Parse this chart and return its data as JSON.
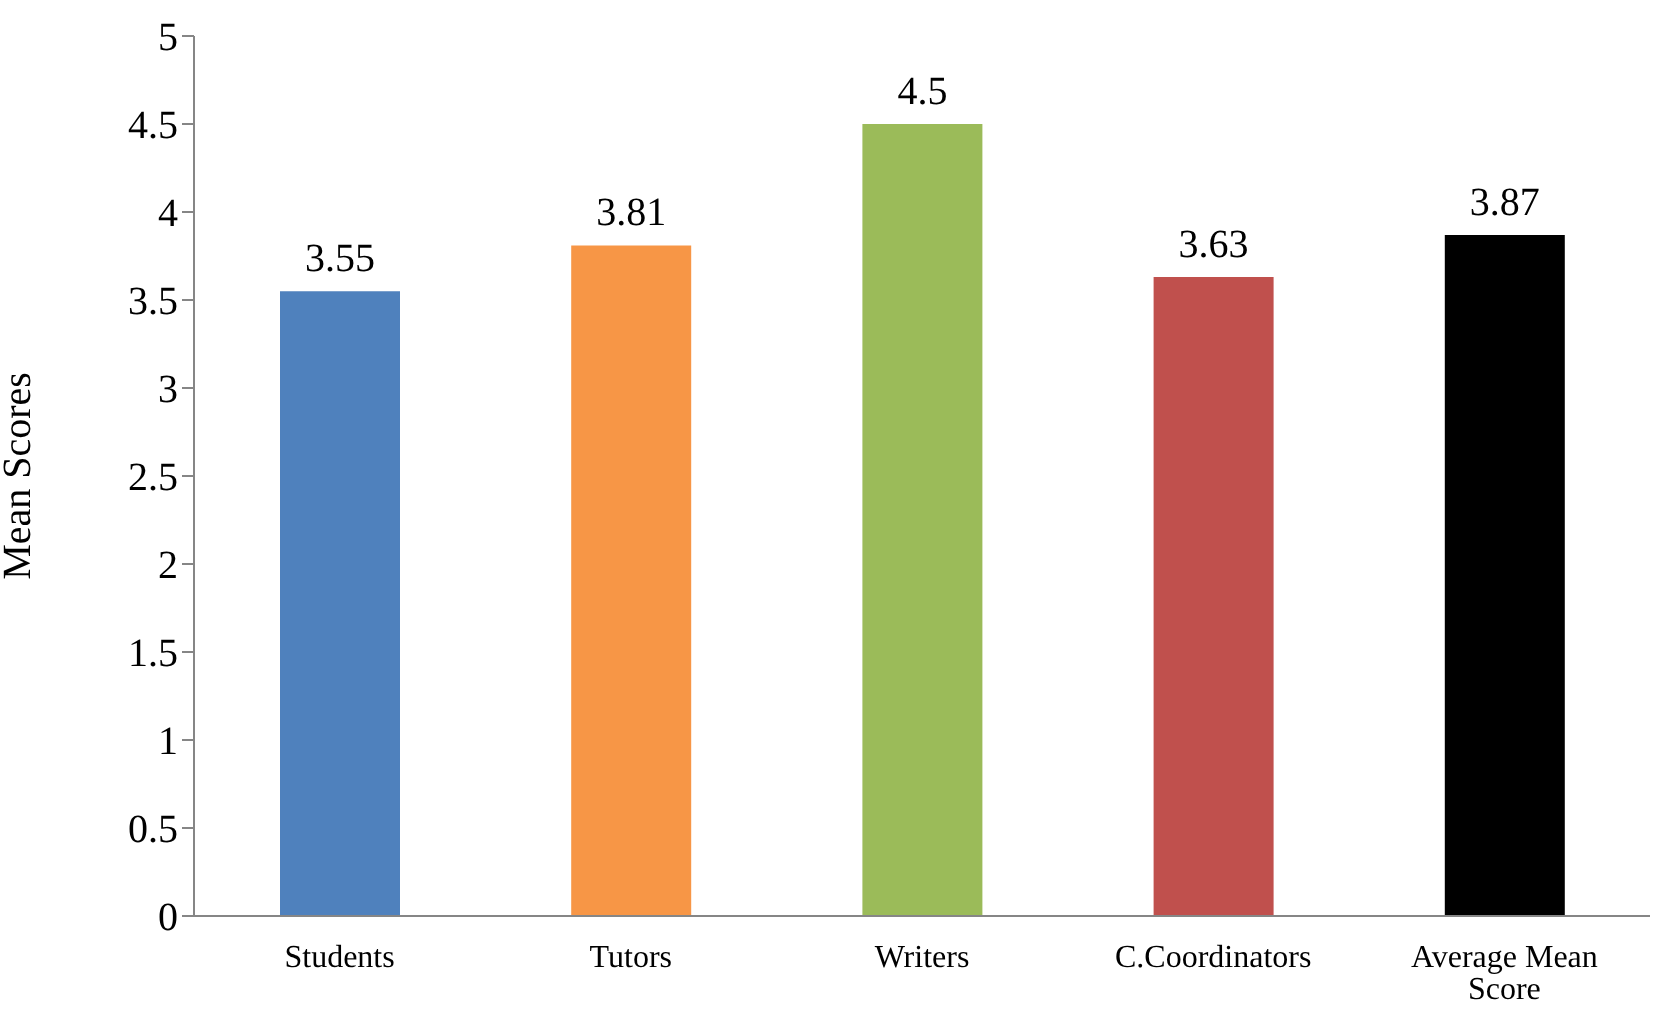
{
  "chart_data": {
    "type": "bar",
    "ylabel": "Mean Scores",
    "categories": [
      "Students",
      "Tutors",
      "Writers",
      "C.Coordinators",
      "Average Mean Score"
    ],
    "values": [
      3.55,
      3.81,
      4.5,
      3.63,
      3.87
    ],
    "colors": [
      "#4f81bd",
      "#f79646",
      "#9bbb59",
      "#c0504d",
      "#000000"
    ],
    "ylim": [
      0,
      5
    ],
    "yticks": [
      0,
      0.5,
      1,
      1.5,
      2,
      2.5,
      3,
      3.5,
      4,
      4.5,
      5
    ],
    "data_labels": true
  }
}
